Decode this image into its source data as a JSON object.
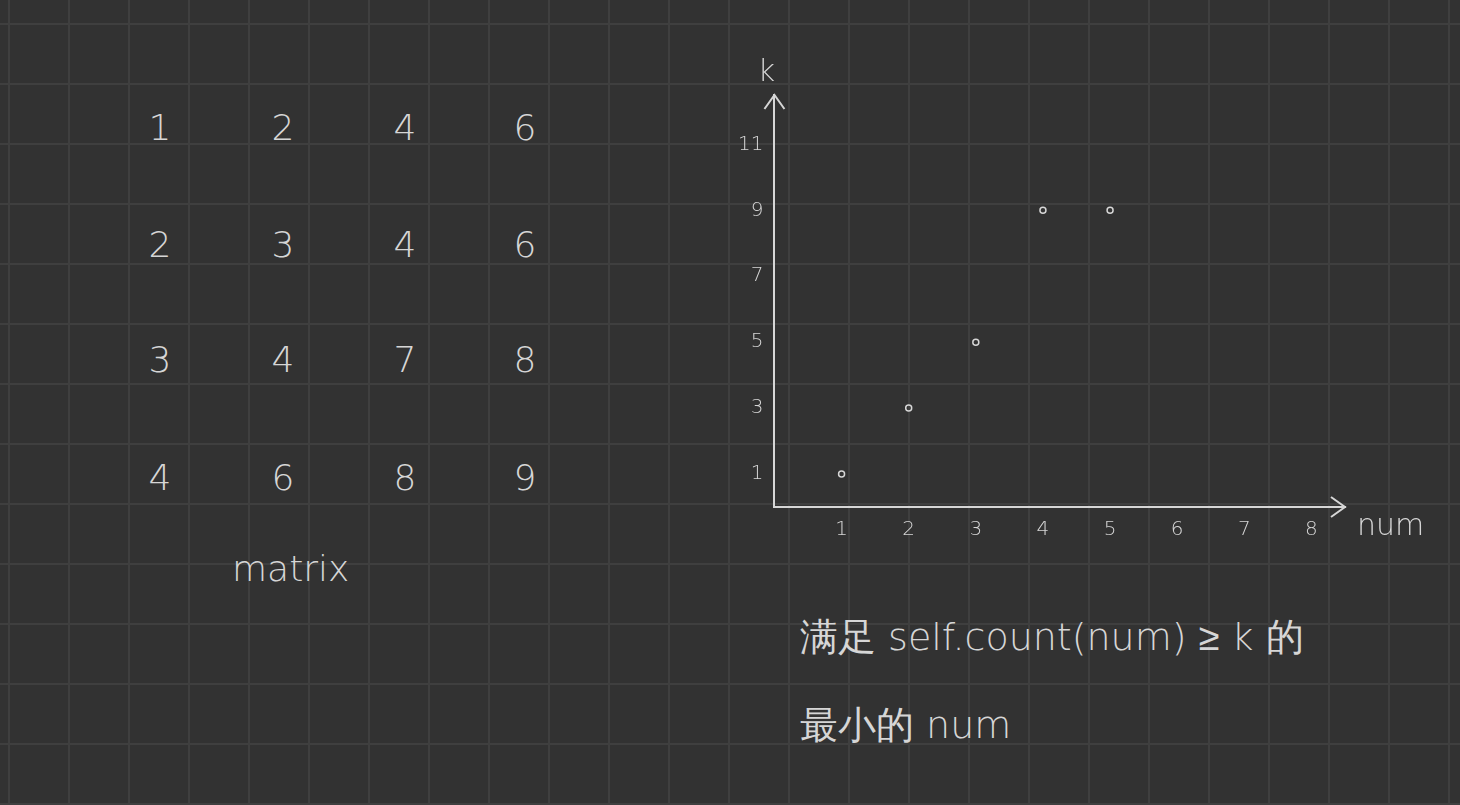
{
  "matrix": {
    "label": "matrix",
    "rows": [
      [
        1,
        2,
        4,
        6
      ],
      [
        2,
        3,
        4,
        6
      ],
      [
        3,
        4,
        7,
        8
      ],
      [
        4,
        6,
        8,
        9
      ]
    ]
  },
  "chart_data": {
    "type": "scatter",
    "x_label": "num",
    "y_label": "k",
    "x": [
      1,
      2,
      3,
      4,
      5
    ],
    "values": [
      1,
      3,
      5,
      9,
      9
    ],
    "xlim": [
      0,
      8.5
    ],
    "xticks": [
      1,
      2,
      3,
      4,
      5,
      6,
      7,
      8
    ],
    "ylim": [
      0,
      12.5
    ],
    "yticks": [
      1,
      3,
      5,
      7,
      9,
      11
    ],
    "grid": false,
    "color": "#d6d6d6",
    "marker": "circle",
    "annotations": [
      "满足 self.count(num) ≥ k 的",
      "最小的 num"
    ]
  }
}
